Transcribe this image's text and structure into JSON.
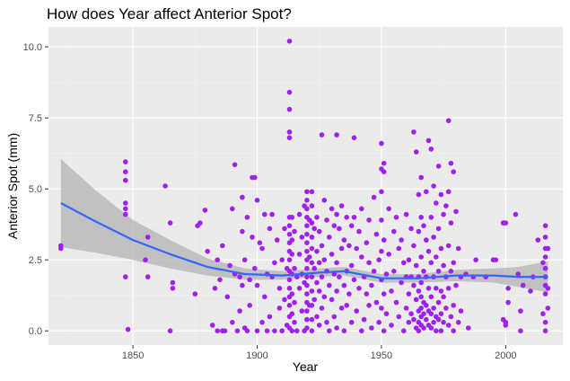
{
  "chart_data": {
    "type": "scatter",
    "title": "How does Year affect Anterior Spot?",
    "xlabel": "Year",
    "ylabel": "Anterior Spot (mm)",
    "xlim": [
      1816,
      2023
    ],
    "ylim": [
      -0.5,
      10.7
    ],
    "x_ticks": [
      1850,
      1900,
      1950,
      2000
    ],
    "x_tick_labels": [
      "1850",
      "1900",
      "1950",
      "2000"
    ],
    "y_ticks": [
      0,
      2.5,
      5,
      7.5,
      10
    ],
    "y_tick_labels": [
      "0.0",
      "2.5",
      "5.0",
      "7.5",
      "10.0"
    ],
    "grid": true,
    "legend": "none",
    "colors": {
      "panel": "#ebebeb",
      "grid_major": "#ffffff",
      "grid_minor": "#f4f4f4",
      "points": "#a020f0",
      "smooth_line": "#3366ff",
      "ribbon": "#b3b3b3"
    },
    "points": [
      [
        1821,
        2.9
      ],
      [
        1821,
        3.0
      ],
      [
        1847,
        5.95
      ],
      [
        1847,
        5.6
      ],
      [
        1847,
        5.3
      ],
      [
        1847,
        4.5
      ],
      [
        1847,
        4.3
      ],
      [
        1847,
        4.1
      ],
      [
        1847,
        1.9
      ],
      [
        1848,
        0.05
      ],
      [
        1863,
        5.1
      ],
      [
        1865,
        0.0
      ],
      [
        1865,
        3.8
      ],
      [
        1866,
        1.7
      ],
      [
        1866,
        1.5
      ],
      [
        1856,
        1.9
      ],
      [
        1856,
        3.3
      ],
      [
        1855,
        2.5
      ],
      [
        1875,
        1.3
      ],
      [
        1876,
        3.7
      ],
      [
        1877,
        3.8
      ],
      [
        1879,
        4.25
      ],
      [
        1880,
        2.8
      ],
      [
        1882,
        0.2
      ],
      [
        1883,
        1.5
      ],
      [
        1884,
        0.0
      ],
      [
        1884,
        2.5
      ],
      [
        1885,
        1.8
      ],
      [
        1886,
        0.0
      ],
      [
        1886,
        3.0
      ],
      [
        1887,
        0.0
      ],
      [
        1888,
        1.2
      ],
      [
        1889,
        2.3
      ],
      [
        1890,
        4.3
      ],
      [
        1890,
        0.3
      ],
      [
        1891,
        5.85
      ],
      [
        1891,
        2.0
      ],
      [
        1892,
        0.0
      ],
      [
        1893,
        1.9
      ],
      [
        1893,
        0.7
      ],
      [
        1894,
        4.7
      ],
      [
        1894,
        3.5
      ],
      [
        1894,
        1.6
      ],
      [
        1895,
        2.5
      ],
      [
        1895,
        0.1
      ],
      [
        1896,
        4.0
      ],
      [
        1896,
        0.0
      ],
      [
        1897,
        1.8
      ],
      [
        1897,
        0.9
      ],
      [
        1898,
        5.4
      ],
      [
        1898,
        3.3
      ],
      [
        1899,
        5.4
      ],
      [
        1899,
        2.2
      ],
      [
        1900,
        4.6
      ],
      [
        1900,
        0.0
      ],
      [
        1900,
        1.6
      ],
      [
        1901,
        3.1
      ],
      [
        1902,
        0.3
      ],
      [
        1902,
        2.9
      ],
      [
        1903,
        4.1
      ],
      [
        1903,
        1.2
      ],
      [
        1904,
        0.0
      ],
      [
        1904,
        2.0
      ],
      [
        1905,
        0.5
      ],
      [
        1905,
        3.6
      ],
      [
        1906,
        1.9
      ],
      [
        1906,
        4.1
      ],
      [
        1907,
        0.0
      ],
      [
        1907,
        2.4
      ],
      [
        1908,
        3.2
      ],
      [
        1909,
        1.5
      ],
      [
        1909,
        0.8
      ],
      [
        1910,
        0.0
      ],
      [
        1910,
        2.5
      ],
      [
        1911,
        1.1
      ],
      [
        1911,
        3.6
      ],
      [
        1912,
        0.2
      ],
      [
        1912,
        2.2
      ],
      [
        1913,
        10.2
      ],
      [
        1913,
        8.4
      ],
      [
        1913,
        7.8
      ],
      [
        1913,
        7.0
      ],
      [
        1913,
        6.8
      ],
      [
        1913,
        4.0
      ],
      [
        1913,
        3.7
      ],
      [
        1913,
        3.4
      ],
      [
        1913,
        3.1
      ],
      [
        1913,
        2.8
      ],
      [
        1913,
        2.5
      ],
      [
        1913,
        2.1
      ],
      [
        1913,
        1.8
      ],
      [
        1913,
        1.5
      ],
      [
        1913,
        1.2
      ],
      [
        1913,
        0.9
      ],
      [
        1913,
        0.5
      ],
      [
        1913,
        0.1
      ],
      [
        1914,
        4.0
      ],
      [
        1914,
        3.2
      ],
      [
        1914,
        2.7
      ],
      [
        1914,
        2.0
      ],
      [
        1914,
        1.3
      ],
      [
        1914,
        0.6
      ],
      [
        1914,
        0.0
      ],
      [
        1915,
        3.5
      ],
      [
        1915,
        2.2
      ],
      [
        1915,
        1.0
      ],
      [
        1915,
        0.3
      ],
      [
        1916,
        1.9
      ],
      [
        1916,
        0.0
      ],
      [
        1917,
        4.1
      ],
      [
        1917,
        2.7
      ],
      [
        1917,
        1.5
      ],
      [
        1918,
        3.3
      ],
      [
        1918,
        0.7
      ],
      [
        1918,
        2.0
      ],
      [
        1919,
        4.4
      ],
      [
        1919,
        1.7
      ],
      [
        1919,
        0.0
      ],
      [
        1920,
        4.9
      ],
      [
        1920,
        4.6
      ],
      [
        1920,
        4.3
      ],
      [
        1920,
        4.0
      ],
      [
        1920,
        3.7
      ],
      [
        1920,
        3.4
      ],
      [
        1920,
        3.1
      ],
      [
        1920,
        2.8
      ],
      [
        1920,
        2.5
      ],
      [
        1920,
        2.2
      ],
      [
        1920,
        1.9
      ],
      [
        1920,
        1.6
      ],
      [
        1920,
        1.3
      ],
      [
        1920,
        1.0
      ],
      [
        1920,
        0.7
      ],
      [
        1920,
        0.4
      ],
      [
        1920,
        0.1
      ],
      [
        1921,
        3.9
      ],
      [
        1921,
        2.6
      ],
      [
        1921,
        0.9
      ],
      [
        1922,
        4.9
      ],
      [
        1922,
        4.4
      ],
      [
        1922,
        3.8
      ],
      [
        1922,
        3.3
      ],
      [
        1922,
        2.9
      ],
      [
        1922,
        2.4
      ],
      [
        1922,
        1.9
      ],
      [
        1922,
        1.4
      ],
      [
        1922,
        0.9
      ],
      [
        1922,
        0.4
      ],
      [
        1922,
        0.0
      ],
      [
        1923,
        3.6
      ],
      [
        1923,
        2.2
      ],
      [
        1923,
        1.1
      ],
      [
        1924,
        4.0
      ],
      [
        1924,
        2.8
      ],
      [
        1924,
        1.7
      ],
      [
        1924,
        0.5
      ],
      [
        1925,
        3.5
      ],
      [
        1925,
        2.4
      ],
      [
        1925,
        1.4
      ],
      [
        1925,
        0.2
      ],
      [
        1926,
        6.9
      ],
      [
        1926,
        3.0
      ],
      [
        1926,
        1.9
      ],
      [
        1926,
        0.8
      ],
      [
        1927,
        4.6
      ],
      [
        1927,
        2.5
      ],
      [
        1927,
        1.2
      ],
      [
        1928,
        3.9
      ],
      [
        1928,
        0.3
      ],
      [
        1928,
        2.1
      ],
      [
        1929,
        3.3
      ],
      [
        1929,
        1.6
      ],
      [
        1929,
        0.0
      ],
      [
        1930,
        4.3
      ],
      [
        1930,
        2.7
      ],
      [
        1930,
        1.1
      ],
      [
        1931,
        3.7
      ],
      [
        1931,
        2.0
      ],
      [
        1931,
        0.5
      ],
      [
        1932,
        6.9
      ],
      [
        1932,
        4.1
      ],
      [
        1932,
        2.4
      ],
      [
        1932,
        1.4
      ],
      [
        1932,
        0.1
      ],
      [
        1933,
        3.6
      ],
      [
        1933,
        1.9
      ],
      [
        1934,
        4.4
      ],
      [
        1934,
        2.9
      ],
      [
        1934,
        0.8
      ],
      [
        1935,
        3.2
      ],
      [
        1935,
        1.6
      ],
      [
        1935,
        0.0
      ],
      [
        1936,
        4.0
      ],
      [
        1936,
        2.1
      ],
      [
        1936,
        0.9
      ],
      [
        1937,
        3.0
      ],
      [
        1937,
        1.3
      ],
      [
        1938,
        3.7
      ],
      [
        1938,
        2.3
      ],
      [
        1938,
        0.3
      ],
      [
        1939,
        6.8
      ],
      [
        1939,
        4.0
      ],
      [
        1939,
        1.8
      ],
      [
        1940,
        2.9
      ],
      [
        1940,
        0.7
      ],
      [
        1941,
        3.5
      ],
      [
        1941,
        1.5
      ],
      [
        1942,
        4.3
      ],
      [
        1942,
        2.6
      ],
      [
        1942,
        0.0
      ],
      [
        1943,
        1.9
      ],
      [
        1943,
        0.4
      ],
      [
        1944,
        3.1
      ],
      [
        1944,
        1.3
      ],
      [
        1945,
        2.4
      ],
      [
        1945,
        0.9
      ],
      [
        1945,
        3.9
      ],
      [
        1946,
        1.6
      ],
      [
        1946,
        0.1
      ],
      [
        1947,
        2.1
      ],
      [
        1947,
        4.7
      ],
      [
        1948,
        3.4
      ],
      [
        1948,
        1.0
      ],
      [
        1949,
        0.3
      ],
      [
        1949,
        2.5
      ],
      [
        1950,
        6.6
      ],
      [
        1950,
        5.7
      ],
      [
        1950,
        4.9
      ],
      [
        1950,
        3.9
      ],
      [
        1950,
        2.8
      ],
      [
        1950,
        1.8
      ],
      [
        1950,
        0.8
      ],
      [
        1951,
        5.9
      ],
      [
        1951,
        5.6
      ],
      [
        1951,
        3.2
      ],
      [
        1951,
        1.3
      ],
      [
        1951,
        0.0
      ],
      [
        1952,
        2.0
      ],
      [
        1952,
        0.6
      ],
      [
        1953,
        4.3
      ],
      [
        1953,
        2.7
      ],
      [
        1954,
        1.4
      ],
      [
        1954,
        0.2
      ],
      [
        1955,
        3.5
      ],
      [
        1955,
        2.1
      ],
      [
        1956,
        1.0
      ],
      [
        1956,
        4.0
      ],
      [
        1957,
        2.9
      ],
      [
        1957,
        0.5
      ],
      [
        1958,
        1.7
      ],
      [
        1958,
        3.2
      ],
      [
        1959,
        2.4
      ],
      [
        1959,
        0.0
      ],
      [
        1960,
        1.9
      ],
      [
        1960,
        4.1
      ],
      [
        1960,
        0.8
      ],
      [
        1961,
        2.5
      ],
      [
        1961,
        1.3
      ],
      [
        1961,
        0.3
      ],
      [
        1962,
        3.6
      ],
      [
        1962,
        1.9
      ],
      [
        1962,
        0.6
      ],
      [
        1963,
        7.0
      ],
      [
        1963,
        3.0
      ],
      [
        1963,
        1.6
      ],
      [
        1963,
        0.4
      ],
      [
        1964,
        6.3
      ],
      [
        1964,
        2.3
      ],
      [
        1964,
        1.1
      ],
      [
        1964,
        0.1
      ],
      [
        1965,
        4.8
      ],
      [
        1965,
        3.5
      ],
      [
        1965,
        1.9
      ],
      [
        1965,
        1.4
      ],
      [
        1965,
        0.7
      ],
      [
        1965,
        0.3
      ],
      [
        1965,
        0.0
      ],
      [
        1966,
        5.4
      ],
      [
        1966,
        4.0
      ],
      [
        1966,
        2.6
      ],
      [
        1966,
        1.7
      ],
      [
        1966,
        1.2
      ],
      [
        1966,
        0.8
      ],
      [
        1966,
        0.5
      ],
      [
        1966,
        0.2
      ],
      [
        1967,
        3.7
      ],
      [
        1967,
        2.1
      ],
      [
        1967,
        1.0
      ],
      [
        1967,
        0.6
      ],
      [
        1967,
        0.1
      ],
      [
        1968,
        4.9
      ],
      [
        1968,
        3.2
      ],
      [
        1968,
        1.9
      ],
      [
        1968,
        0.9
      ],
      [
        1968,
        0.4
      ],
      [
        1969,
        6.7
      ],
      [
        1969,
        2.8
      ],
      [
        1969,
        1.5
      ],
      [
        1969,
        0.7
      ],
      [
        1969,
        0.2
      ],
      [
        1970,
        6.4
      ],
      [
        1970,
        4.0
      ],
      [
        1970,
        2.4
      ],
      [
        1970,
        1.2
      ],
      [
        1970,
        0.6
      ],
      [
        1970,
        0.1
      ],
      [
        1971,
        5.1
      ],
      [
        1971,
        3.3
      ],
      [
        1971,
        1.9
      ],
      [
        1971,
        0.8
      ],
      [
        1971,
        0.3
      ],
      [
        1972,
        4.5
      ],
      [
        1972,
        2.6
      ],
      [
        1972,
        1.5
      ],
      [
        1972,
        0.5
      ],
      [
        1972,
        0.0
      ],
      [
        1973,
        5.8
      ],
      [
        1973,
        3.6
      ],
      [
        1973,
        2.1
      ],
      [
        1973,
        1.0
      ],
      [
        1973,
        0.4
      ],
      [
        1974,
        4.8
      ],
      [
        1974,
        2.9
      ],
      [
        1974,
        1.4
      ],
      [
        1974,
        0.6
      ],
      [
        1974,
        0.0
      ],
      [
        1975,
        4.1
      ],
      [
        1975,
        2.3
      ],
      [
        1975,
        1.2
      ],
      [
        1975,
        0.3
      ],
      [
        1976,
        4.4
      ],
      [
        1976,
        1.9
      ],
      [
        1976,
        0.8
      ],
      [
        1977,
        7.4
      ],
      [
        1977,
        4.9
      ],
      [
        1977,
        3.0
      ],
      [
        1977,
        1.5
      ],
      [
        1977,
        0.2
      ],
      [
        1978,
        5.9
      ],
      [
        1978,
        3.8
      ],
      [
        1978,
        2.1
      ],
      [
        1978,
        0.5
      ],
      [
        1979,
        5.6
      ],
      [
        1979,
        2.4
      ],
      [
        1979,
        0.9
      ],
      [
        1979,
        0.0
      ],
      [
        1980,
        4.2
      ],
      [
        1980,
        1.6
      ],
      [
        1981,
        2.9
      ],
      [
        1981,
        0.3
      ],
      [
        1982,
        1.9
      ],
      [
        1982,
        0.7
      ],
      [
        1984,
        2.0
      ],
      [
        1985,
        0.1
      ],
      [
        1987,
        1.9
      ],
      [
        1988,
        2.5
      ],
      [
        1992,
        1.9
      ],
      [
        1995,
        2.5
      ],
      [
        1996,
        2.5
      ],
      [
        1999,
        3.8
      ],
      [
        1999,
        0.4
      ],
      [
        2000,
        3.8
      ],
      [
        2000,
        0.2
      ],
      [
        2000,
        0.3
      ],
      [
        2001,
        1.0
      ],
      [
        2001,
        1.5
      ],
      [
        2004,
        4.1
      ],
      [
        2005,
        2.0
      ],
      [
        2006,
        0.7
      ],
      [
        2006,
        0.0
      ],
      [
        2007,
        1.6
      ],
      [
        2010,
        1.4
      ],
      [
        2011,
        1.9
      ],
      [
        2013,
        3.2
      ],
      [
        2015,
        0.6
      ],
      [
        2015,
        2.4
      ],
      [
        2016,
        3.7
      ],
      [
        2016,
        3.3
      ],
      [
        2016,
        2.9
      ],
      [
        2016,
        2.6
      ],
      [
        2016,
        2.2
      ],
      [
        2016,
        1.9
      ],
      [
        2016,
        1.6
      ],
      [
        2016,
        1.3
      ],
      [
        2016,
        0.3
      ],
      [
        2016,
        0.0
      ],
      [
        2017,
        2.9
      ],
      [
        2017,
        1.5
      ],
      [
        2017,
        0.8
      ]
    ],
    "smooth_fit": {
      "x": [
        1821,
        1835,
        1850,
        1865,
        1880,
        1895,
        1910,
        1925,
        1935,
        1950,
        1965,
        1980,
        1995,
        2005,
        2017
      ],
      "y": [
        4.5,
        3.85,
        3.2,
        2.7,
        2.25,
        2.0,
        1.95,
        2.05,
        2.1,
        1.85,
        1.85,
        1.95,
        1.95,
        1.9,
        1.9
      ],
      "lower": [
        2.95,
        2.75,
        2.5,
        2.2,
        1.95,
        1.8,
        1.8,
        1.9,
        1.95,
        1.7,
        1.7,
        1.75,
        1.7,
        1.55,
        1.35
      ],
      "upper": [
        6.05,
        4.95,
        3.9,
        3.2,
        2.55,
        2.2,
        2.1,
        2.2,
        2.25,
        2.0,
        2.0,
        2.15,
        2.2,
        2.25,
        2.45
      ]
    }
  }
}
